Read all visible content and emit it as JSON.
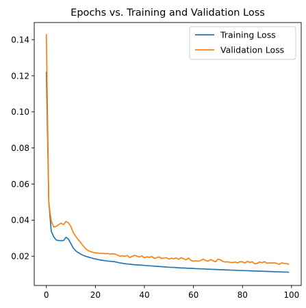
{
  "chart_data": {
    "type": "line",
    "title": "Epochs vs. Training and Validation Loss",
    "xlabel": "",
    "ylabel": "",
    "xlim": [
      -4.95,
      103.95
    ],
    "ylim": [
      0.0038,
      0.1495
    ],
    "xticks": [
      0,
      20,
      40,
      60,
      80,
      100
    ],
    "yticks": [
      0.02,
      0.04,
      0.06,
      0.08,
      0.1,
      0.12,
      0.14
    ],
    "ytick_labels": [
      "0.02",
      "0.04",
      "0.06",
      "0.08",
      "0.10",
      "0.12",
      "0.14"
    ],
    "grid": false,
    "legend_position": "top-right",
    "x": [
      0,
      1,
      2,
      3,
      4,
      5,
      6,
      7,
      8,
      9,
      10,
      11,
      12,
      13,
      14,
      15,
      16,
      17,
      18,
      19,
      20,
      21,
      22,
      23,
      24,
      25,
      26,
      27,
      28,
      29,
      30,
      31,
      32,
      33,
      34,
      35,
      36,
      37,
      38,
      39,
      40,
      41,
      42,
      43,
      44,
      45,
      46,
      47,
      48,
      49,
      50,
      51,
      52,
      53,
      54,
      55,
      56,
      57,
      58,
      59,
      60,
      61,
      62,
      63,
      64,
      65,
      66,
      67,
      68,
      69,
      70,
      71,
      72,
      73,
      74,
      75,
      76,
      77,
      78,
      79,
      80,
      81,
      82,
      83,
      84,
      85,
      86,
      87,
      88,
      89,
      90,
      91,
      92,
      93,
      94,
      95,
      96,
      97,
      98,
      99
    ],
    "series": [
      {
        "name": "Training Loss",
        "color": "#1f77b4",
        "values": [
          0.1222,
          0.0502,
          0.0338,
          0.0308,
          0.029,
          0.0287,
          0.0286,
          0.0287,
          0.0305,
          0.0295,
          0.027,
          0.0245,
          0.023,
          0.022,
          0.0212,
          0.0205,
          0.02,
          0.0196,
          0.0192,
          0.0188,
          0.0185,
          0.0182,
          0.0179,
          0.0177,
          0.0175,
          0.0173,
          0.0172,
          0.0171,
          0.0169,
          0.0166,
          0.0163,
          0.0161,
          0.0159,
          0.0157,
          0.0156,
          0.0154,
          0.0153,
          0.0152,
          0.0151,
          0.015,
          0.0149,
          0.0148,
          0.0147,
          0.0146,
          0.0145,
          0.0144,
          0.0143,
          0.0142,
          0.0141,
          0.014,
          0.0139,
          0.0138,
          0.0138,
          0.0137,
          0.0136,
          0.0135,
          0.0135,
          0.0134,
          0.0133,
          0.0133,
          0.0132,
          0.0131,
          0.0131,
          0.013,
          0.013,
          0.0129,
          0.0128,
          0.0128,
          0.0127,
          0.0127,
          0.0126,
          0.0125,
          0.0125,
          0.0124,
          0.0124,
          0.0123,
          0.0123,
          0.0122,
          0.0122,
          0.0121,
          0.0121,
          0.012,
          0.012,
          0.0119,
          0.0119,
          0.0118,
          0.0118,
          0.0117,
          0.0117,
          0.0116,
          0.0116,
          0.0115,
          0.0115,
          0.0114,
          0.0114,
          0.0113,
          0.0113,
          0.0112,
          0.0112,
          0.0111
        ]
      },
      {
        "name": "Validation Loss",
        "color": "#ff7f0e",
        "values": [
          0.143,
          0.049,
          0.0395,
          0.0362,
          0.0365,
          0.0375,
          0.0383,
          0.0375,
          0.0393,
          0.0385,
          0.0365,
          0.033,
          0.031,
          0.0292,
          0.0275,
          0.0258,
          0.0242,
          0.0232,
          0.0226,
          0.0222,
          0.0218,
          0.0218,
          0.0215,
          0.0216,
          0.0214,
          0.0215,
          0.0212,
          0.0214,
          0.0212,
          0.0206,
          0.02,
          0.0203,
          0.0199,
          0.0204,
          0.0193,
          0.0199,
          0.0205,
          0.02,
          0.0196,
          0.0202,
          0.0191,
          0.0197,
          0.0194,
          0.0199,
          0.0188,
          0.0192,
          0.0196,
          0.0187,
          0.019,
          0.0192,
          0.0184,
          0.0189,
          0.0186,
          0.019,
          0.0183,
          0.0192,
          0.0186,
          0.018,
          0.019,
          0.0177,
          0.0172,
          0.0175,
          0.0172,
          0.0177,
          0.0184,
          0.0176,
          0.0173,
          0.0182,
          0.0175,
          0.0169,
          0.0184,
          0.018,
          0.0171,
          0.0168,
          0.0169,
          0.0166,
          0.0165,
          0.0168,
          0.0163,
          0.017,
          0.0169,
          0.0162,
          0.0172,
          0.0166,
          0.0169,
          0.0158,
          0.016,
          0.0168,
          0.0164,
          0.017,
          0.0161,
          0.0163,
          0.0162,
          0.0164,
          0.016,
          0.0155,
          0.0163,
          0.016,
          0.0159,
          0.0155
        ]
      }
    ]
  }
}
